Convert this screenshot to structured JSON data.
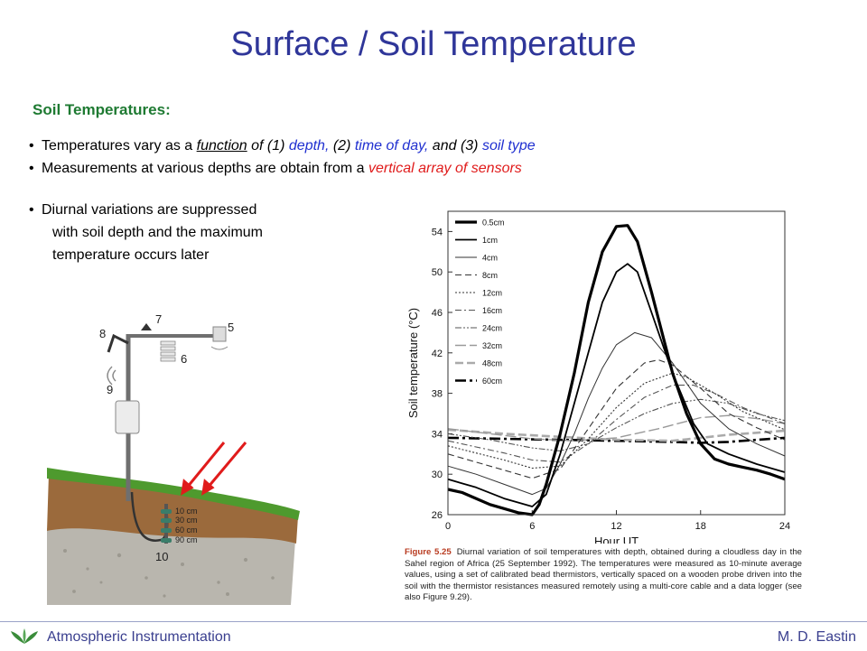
{
  "slide": {
    "title": "Surface / Soil Temperature",
    "heading": "Soil Temperatures:",
    "bullet1": {
      "a": "Temperatures vary as a ",
      "b": "function",
      "c": " of (1) ",
      "d": "depth,",
      "e": " (2) ",
      "f": "time of day,",
      "g": " and (3) ",
      "h": "soil type"
    },
    "bullet2": {
      "a": "Measurements at various depths are obtain from a ",
      "b": "vertical array of sensors"
    },
    "bullet3": {
      "line1": "Diurnal variations are suppressed",
      "line2": "with soil depth and the maximum",
      "line3": "temperature occurs later"
    }
  },
  "station": {
    "labels": [
      "5",
      "6",
      "7",
      "8",
      "9",
      "10"
    ],
    "depths": [
      "10 cm",
      "30 cm",
      "60 cm",
      "90 cm"
    ],
    "colors": {
      "grass": "#4e9a2e",
      "soil": "#9b6a3c",
      "gravel": "#b9b6ae",
      "pole": "#6f6f6f",
      "arrow": "#e01b1b"
    }
  },
  "chart_data": {
    "type": "line",
    "title": "",
    "xlabel": "Hour UT",
    "ylabel": "Soil temperature (°C)",
    "xlim": [
      0,
      24
    ],
    "ylim": [
      26,
      56
    ],
    "xticks": [
      0,
      6,
      12,
      18,
      24
    ],
    "yticks": [
      26,
      30,
      34,
      38,
      42,
      46,
      50,
      54
    ],
    "legend_position": "top-left",
    "series": [
      {
        "name": "0.5cm",
        "style": "thick-solid",
        "color": "#000000",
        "width": 3.2,
        "dash": "",
        "points": [
          [
            0,
            28.5
          ],
          [
            1,
            28.2
          ],
          [
            2,
            27.6
          ],
          [
            3,
            27
          ],
          [
            4,
            26.6
          ],
          [
            5,
            26.2
          ],
          [
            6,
            26
          ],
          [
            6.5,
            27
          ],
          [
            7,
            29
          ],
          [
            8,
            34
          ],
          [
            9,
            40
          ],
          [
            10,
            47
          ],
          [
            11,
            52
          ],
          [
            12,
            54.5
          ],
          [
            12.8,
            54.6
          ],
          [
            13.5,
            53
          ],
          [
            14.5,
            48
          ],
          [
            16,
            40
          ],
          [
            17,
            36
          ],
          [
            18,
            33
          ],
          [
            19,
            31.5
          ],
          [
            20,
            31
          ],
          [
            21,
            30.7
          ],
          [
            22,
            30.4
          ],
          [
            23,
            30
          ],
          [
            24,
            29.5
          ]
        ]
      },
      {
        "name": "1cm",
        "style": "solid",
        "color": "#000000",
        "width": 1.8,
        "dash": "",
        "points": [
          [
            0,
            29.5
          ],
          [
            2,
            28.7
          ],
          [
            4,
            27.6
          ],
          [
            6,
            26.8
          ],
          [
            7,
            28
          ],
          [
            8,
            32
          ],
          [
            9,
            37
          ],
          [
            10,
            42
          ],
          [
            11,
            47
          ],
          [
            12,
            50
          ],
          [
            12.8,
            50.8
          ],
          [
            13.5,
            50
          ],
          [
            14.5,
            46
          ],
          [
            16,
            40
          ],
          [
            17.5,
            35
          ],
          [
            18.5,
            33
          ],
          [
            20,
            32
          ],
          [
            22,
            31
          ],
          [
            24,
            30.2
          ]
        ]
      },
      {
        "name": "4cm",
        "style": "thin-solid",
        "color": "#333333",
        "width": 1,
        "dash": "",
        "points": [
          [
            0,
            30.8
          ],
          [
            2,
            30
          ],
          [
            4,
            29
          ],
          [
            6,
            28
          ],
          [
            7,
            28.6
          ],
          [
            8,
            31
          ],
          [
            9,
            34
          ],
          [
            10,
            37.5
          ],
          [
            11,
            40.5
          ],
          [
            12,
            42.8
          ],
          [
            13.3,
            44
          ],
          [
            14.5,
            43.5
          ],
          [
            16,
            41
          ],
          [
            18,
            37
          ],
          [
            20,
            34.5
          ],
          [
            22,
            33
          ],
          [
            24,
            31.8
          ]
        ]
      },
      {
        "name": "8cm",
        "style": "dashed",
        "color": "#333333",
        "width": 1.1,
        "dash": "7,4",
        "points": [
          [
            0,
            32
          ],
          [
            2,
            31.2
          ],
          [
            4,
            30.4
          ],
          [
            6,
            29.6
          ],
          [
            8,
            30.5
          ],
          [
            10,
            34.5
          ],
          [
            12,
            38.5
          ],
          [
            14,
            41
          ],
          [
            15,
            41.3
          ],
          [
            16,
            40.8
          ],
          [
            18,
            38.5
          ],
          [
            20,
            36
          ],
          [
            22,
            34.6
          ],
          [
            24,
            33.4
          ]
        ]
      },
      {
        "name": "12cm",
        "style": "dotted",
        "color": "#333333",
        "width": 1.1,
        "dash": "2,2",
        "points": [
          [
            0,
            32.8
          ],
          [
            2,
            32.1
          ],
          [
            4,
            31.4
          ],
          [
            6,
            30.6
          ],
          [
            8,
            30.8
          ],
          [
            10,
            33.5
          ],
          [
            12,
            36.6
          ],
          [
            14,
            39
          ],
          [
            16,
            40
          ],
          [
            17,
            39.6
          ],
          [
            19,
            38
          ],
          [
            21,
            36.2
          ],
          [
            24,
            34.4
          ]
        ]
      },
      {
        "name": "16cm",
        "style": "dash-dot",
        "color": "#555555",
        "width": 1.1,
        "dash": "7,3,2,3",
        "points": [
          [
            0,
            33.3
          ],
          [
            2,
            32.7
          ],
          [
            4,
            32.1
          ],
          [
            6,
            31.4
          ],
          [
            8,
            31.2
          ],
          [
            10,
            33
          ],
          [
            12,
            35.4
          ],
          [
            14,
            37.6
          ],
          [
            16,
            38.8
          ],
          [
            17.5,
            38.8
          ],
          [
            19,
            38
          ],
          [
            21,
            36.6
          ],
          [
            24,
            35
          ]
        ]
      },
      {
        "name": "24cm",
        "style": "dash-dot-dot",
        "color": "#555555",
        "width": 1.1,
        "dash": "7,2,2,2,2,2",
        "points": [
          [
            0,
            34
          ],
          [
            3,
            33.4
          ],
          [
            6,
            32.6
          ],
          [
            8,
            32.3
          ],
          [
            10,
            33
          ],
          [
            12,
            34.6
          ],
          [
            14,
            36
          ],
          [
            16,
            37
          ],
          [
            18,
            37.4
          ],
          [
            20,
            37
          ],
          [
            22,
            36
          ],
          [
            24,
            35.3
          ]
        ]
      },
      {
        "name": "32cm",
        "style": "long-dash-gray",
        "color": "#999999",
        "width": 1.4,
        "dash": "12,4",
        "points": [
          [
            0,
            34.5
          ],
          [
            3,
            34
          ],
          [
            6,
            33.5
          ],
          [
            9,
            33.3
          ],
          [
            12,
            33.6
          ],
          [
            15,
            34.5
          ],
          [
            18,
            35.6
          ],
          [
            20,
            35.8
          ],
          [
            22,
            35.5
          ],
          [
            24,
            35
          ]
        ]
      },
      {
        "name": "48cm",
        "style": "thick-dash-gray",
        "color": "#aaaaaa",
        "width": 2.6,
        "dash": "9,4",
        "points": [
          [
            0,
            34.4
          ],
          [
            4,
            34
          ],
          [
            8,
            33.7
          ],
          [
            12,
            33.4
          ],
          [
            16,
            33.3
          ],
          [
            18,
            33.6
          ],
          [
            20,
            33.9
          ],
          [
            22,
            34.1
          ],
          [
            24,
            34.3
          ]
        ]
      },
      {
        "name": "60cm",
        "style": "thick-dash-dot",
        "color": "#000000",
        "width": 2.6,
        "dash": "12,4,3,4",
        "points": [
          [
            0,
            33.6
          ],
          [
            4,
            33.5
          ],
          [
            8,
            33.4
          ],
          [
            12,
            33.3
          ],
          [
            16,
            33.2
          ],
          [
            18,
            33.1
          ],
          [
            20,
            33.2
          ],
          [
            22,
            33.4
          ],
          [
            24,
            33.6
          ]
        ]
      }
    ],
    "caption_label": "Figure 5.25",
    "caption_text": "Diurnal variation of soil temperatures with depth, obtained during a cloudless day in the Sahel region of Africa (25 September 1992). The temperatures were measured as 10-minute average values, using a set of calibrated bead thermistors, vertically spaced on a wooden probe driven into the soil with the thermistor resistances measured remotely using a multi-core cable and a data logger (see also Figure 9.29)."
  },
  "footer": {
    "left": "Atmospheric Instrumentation",
    "right": "M. D. Eastin",
    "logo_color": "#3a8c3a"
  }
}
